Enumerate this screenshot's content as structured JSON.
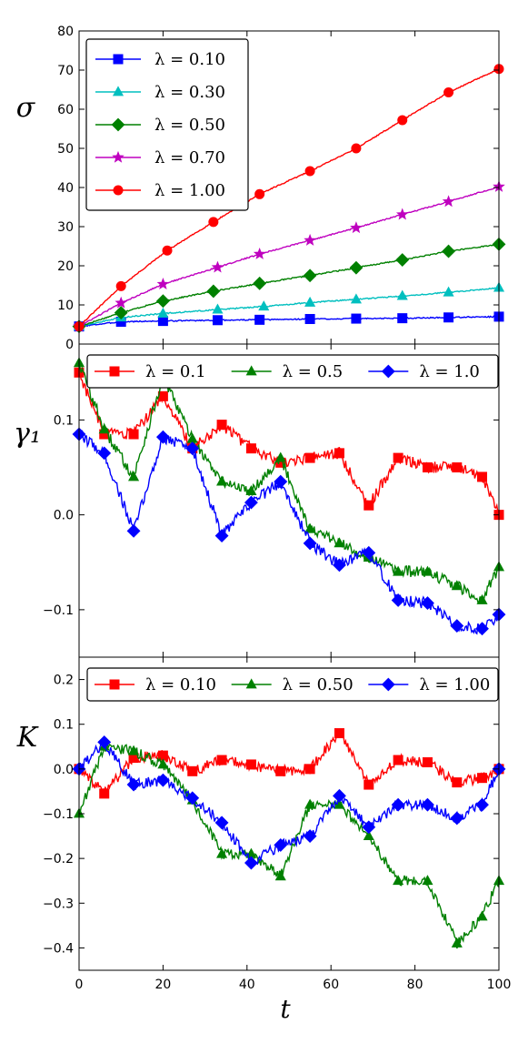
{
  "xlabel": "t",
  "chart_data": [
    {
      "type": "line",
      "ylabel": "σ",
      "xlim": [
        0,
        100
      ],
      "ylim": [
        0,
        80
      ],
      "xticks": [
        0,
        20,
        40,
        60,
        80,
        100
      ],
      "yticks": [
        0,
        10,
        20,
        30,
        40,
        50,
        60,
        70,
        80
      ],
      "legend": "top-left",
      "series": [
        {
          "name": "λ = 0.10",
          "color": "#0000ff",
          "marker": "square",
          "x": [
            0,
            10,
            20,
            33,
            43,
            55,
            66,
            77,
            88,
            100
          ],
          "y": [
            4.5,
            5.7,
            5.9,
            6.1,
            6.2,
            6.4,
            6.5,
            6.6,
            6.8,
            7.0
          ]
        },
        {
          "name": "λ = 0.30",
          "color": "#00bfbf",
          "marker": "triangle",
          "x": [
            0,
            10,
            20,
            33,
            44,
            55,
            66,
            77,
            88,
            100
          ],
          "y": [
            4.5,
            6.8,
            7.8,
            8.8,
            9.6,
            10.6,
            11.4,
            12.3,
            13.2,
            14.4
          ]
        },
        {
          "name": "λ = 0.50",
          "color": "#008000",
          "marker": "diamond",
          "x": [
            0,
            10,
            20,
            32,
            43,
            55,
            66,
            77,
            88,
            100
          ],
          "y": [
            4.5,
            8.0,
            11.0,
            13.5,
            15.5,
            17.5,
            19.5,
            21.5,
            23.7,
            25.5
          ]
        },
        {
          "name": "λ = 0.70",
          "color": "#bf00bf",
          "marker": "star",
          "x": [
            0,
            10,
            20,
            33,
            43,
            55,
            66,
            77,
            88,
            100
          ],
          "y": [
            4.5,
            10.5,
            15.3,
            19.6,
            23.0,
            26.5,
            29.7,
            33.1,
            36.4,
            40.2
          ]
        },
        {
          "name": "λ = 1.00",
          "color": "#ff0000",
          "marker": "circle",
          "x": [
            0,
            10,
            21,
            32,
            43,
            55,
            66,
            77,
            88,
            100
          ],
          "y": [
            4.5,
            14.8,
            23.9,
            31.2,
            38.3,
            44.2,
            50.0,
            57.2,
            64.3,
            70.3
          ]
        }
      ]
    },
    {
      "type": "line",
      "ylabel": "γ₁",
      "xlim": [
        0,
        100
      ],
      "ylim": [
        -0.15,
        0.18
      ],
      "xticks": [
        0,
        20,
        40,
        60,
        80,
        100
      ],
      "yticks": [
        -0.1,
        0.0,
        0.1
      ],
      "legend": "top",
      "series": [
        {
          "name": "λ = 0.1",
          "color": "#ff0000",
          "marker": "square",
          "x": [
            0,
            6,
            13,
            20,
            27,
            34,
            41,
            48,
            55,
            62,
            69,
            76,
            83,
            90,
            96,
            100
          ],
          "y": [
            0.15,
            0.085,
            0.085,
            0.125,
            0.07,
            0.095,
            0.07,
            0.055,
            0.06,
            0.065,
            0.01,
            0.06,
            0.05,
            0.05,
            0.04,
            0.0
          ]
        },
        {
          "name": "λ = 0.5",
          "color": "#008000",
          "marker": "triangle",
          "x": [
            0,
            6,
            13,
            20,
            27,
            34,
            41,
            48,
            55,
            62,
            69,
            76,
            83,
            90,
            96,
            100
          ],
          "y": [
            0.16,
            0.09,
            0.04,
            0.145,
            0.08,
            0.035,
            0.025,
            0.06,
            -0.015,
            -0.03,
            -0.045,
            -0.06,
            -0.06,
            -0.075,
            -0.09,
            -0.055
          ]
        },
        {
          "name": "λ = 1.0",
          "color": "#0000ff",
          "marker": "diamond",
          "x": [
            0,
            6,
            13,
            20,
            27,
            34,
            41,
            48,
            55,
            62,
            69,
            76,
            83,
            90,
            96,
            100
          ],
          "y": [
            0.085,
            0.065,
            -0.017,
            0.082,
            0.07,
            -0.022,
            0.013,
            0.035,
            -0.03,
            -0.053,
            -0.04,
            -0.09,
            -0.093,
            -0.117,
            -0.12,
            -0.105
          ]
        }
      ]
    },
    {
      "type": "line",
      "ylabel": "K",
      "xlim": [
        0,
        100
      ],
      "ylim": [
        -0.45,
        0.25
      ],
      "xticks": [
        0,
        20,
        40,
        60,
        80,
        100
      ],
      "yticks": [
        -0.4,
        -0.3,
        -0.2,
        -0.1,
        0.0,
        0.1,
        0.2
      ],
      "legend": "top",
      "series": [
        {
          "name": "λ = 0.10",
          "color": "#ff0000",
          "marker": "square",
          "x": [
            0,
            6,
            13,
            20,
            27,
            34,
            41,
            48,
            55,
            62,
            69,
            76,
            83,
            90,
            96,
            100
          ],
          "y": [
            0.0,
            -0.055,
            0.025,
            0.03,
            -0.005,
            0.02,
            0.01,
            -0.005,
            0.0,
            0.08,
            -0.035,
            0.02,
            0.015,
            -0.03,
            -0.02,
            0.0
          ]
        },
        {
          "name": "λ = 0.50",
          "color": "#008000",
          "marker": "triangle",
          "x": [
            0,
            6,
            13,
            20,
            27,
            34,
            41,
            48,
            55,
            62,
            69,
            76,
            83,
            90,
            96,
            100
          ],
          "y": [
            -0.1,
            0.05,
            0.04,
            0.01,
            -0.07,
            -0.19,
            -0.19,
            -0.24,
            -0.08,
            -0.08,
            -0.15,
            -0.25,
            -0.25,
            -0.39,
            -0.33,
            -0.25
          ]
        },
        {
          "name": "λ = 1.00",
          "color": "#0000ff",
          "marker": "diamond",
          "x": [
            0,
            6,
            13,
            20,
            27,
            34,
            41,
            48,
            55,
            62,
            69,
            76,
            83,
            90,
            96,
            100
          ],
          "y": [
            0.0,
            0.06,
            -0.035,
            -0.025,
            -0.065,
            -0.12,
            -0.21,
            -0.17,
            -0.15,
            -0.06,
            -0.13,
            -0.08,
            -0.08,
            -0.11,
            -0.08,
            0.0
          ]
        }
      ]
    }
  ]
}
